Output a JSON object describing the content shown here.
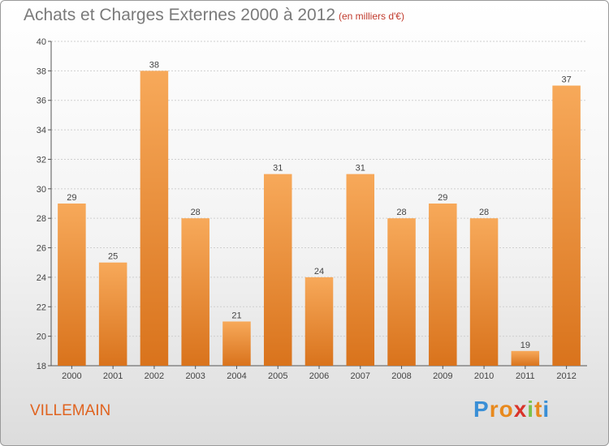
{
  "header": {
    "title": "Achats et Charges Externes 2000 à 2012",
    "subtitle": "(en milliers d'€)"
  },
  "footer": {
    "commune": "VILLEMAIN",
    "logo_text": "Proxiti"
  },
  "colors": {
    "bar_light": "#f7a95a",
    "bar_dark": "#d9731c",
    "title": "#7a7a7a",
    "commune": "#e0631f"
  },
  "chart_data": {
    "type": "bar",
    "title": "Achats et Charges Externes 2000 à 2012",
    "subtitle": "(en milliers d'€)",
    "categories": [
      "2000",
      "2001",
      "2002",
      "2003",
      "2004",
      "2005",
      "2006",
      "2007",
      "2008",
      "2009",
      "2010",
      "2011",
      "2012"
    ],
    "values": [
      29,
      25,
      38,
      28,
      21,
      31,
      24,
      31,
      28,
      29,
      28,
      19,
      37
    ],
    "ylim": [
      18,
      40
    ],
    "yticks": [
      18,
      20,
      22,
      24,
      26,
      28,
      30,
      32,
      34,
      36,
      38,
      40
    ],
    "grid": true,
    "data_labels": true
  }
}
